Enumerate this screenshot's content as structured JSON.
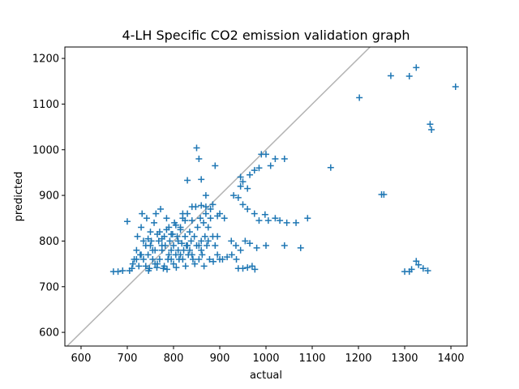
{
  "chart_data": {
    "type": "scatter",
    "title": "4-LH Specific CO2 emission validation graph",
    "xlabel": "actual",
    "ylabel": "predicted",
    "xlim": [
      565,
      1435
    ],
    "ylim": [
      570,
      1225
    ],
    "xticks": [
      600,
      700,
      800,
      900,
      1000,
      1100,
      1200,
      1300,
      1400
    ],
    "yticks": [
      600,
      700,
      800,
      900,
      1000,
      1100,
      1200
    ],
    "grid": false,
    "marker": "+",
    "series_color": "#1f77b4",
    "reference_line": {
      "from": [
        560,
        560
      ],
      "to": [
        1440,
        1440
      ],
      "color": "#b3b3b3"
    },
    "points": [
      [
        670,
        733
      ],
      [
        680,
        733
      ],
      [
        690,
        735
      ],
      [
        700,
        843
      ],
      [
        705,
        735
      ],
      [
        710,
        740
      ],
      [
        715,
        760
      ],
      [
        720,
        780
      ],
      [
        722,
        810
      ],
      [
        725,
        745
      ],
      [
        730,
        830
      ],
      [
        732,
        860
      ],
      [
        735,
        760
      ],
      [
        740,
        790
      ],
      [
        742,
        850
      ],
      [
        745,
        770
      ],
      [
        748,
        740
      ],
      [
        750,
        820
      ],
      [
        752,
        800
      ],
      [
        755,
        760
      ],
      [
        758,
        840
      ],
      [
        760,
        780
      ],
      [
        762,
        860
      ],
      [
        765,
        750
      ],
      [
        768,
        800
      ],
      [
        770,
        820
      ],
      [
        772,
        870
      ],
      [
        775,
        780
      ],
      [
        778,
        740
      ],
      [
        780,
        810
      ],
      [
        782,
        790
      ],
      [
        785,
        850
      ],
      [
        788,
        760
      ],
      [
        790,
        830
      ],
      [
        792,
        800
      ],
      [
        795,
        780
      ],
      [
        798,
        815
      ],
      [
        800,
        790
      ],
      [
        802,
        840
      ],
      [
        805,
        770
      ],
      [
        808,
        810
      ],
      [
        810,
        800
      ],
      [
        812,
        760
      ],
      [
        815,
        830
      ],
      [
        818,
        795
      ],
      [
        820,
        850
      ],
      [
        822,
        780
      ],
      [
        825,
        810
      ],
      [
        828,
        790
      ],
      [
        830,
        860
      ],
      [
        832,
        770
      ],
      [
        835,
        820
      ],
      [
        838,
        800
      ],
      [
        840,
        845
      ],
      [
        842,
        760
      ],
      [
        845,
        810
      ],
      [
        848,
        875
      ],
      [
        850,
        790
      ],
      [
        852,
        830
      ],
      [
        855,
        760
      ],
      [
        858,
        850
      ],
      [
        860,
        800
      ],
      [
        862,
        770
      ],
      [
        865,
        840
      ],
      [
        868,
        810
      ],
      [
        870,
        860
      ],
      [
        872,
        790
      ],
      [
        875,
        830
      ],
      [
        878,
        760
      ],
      [
        880,
        850
      ],
      [
        885,
        810
      ],
      [
        890,
        790
      ],
      [
        895,
        770
      ],
      [
        900,
        760
      ],
      [
        720,
        760
      ],
      [
        740,
        745
      ],
      [
        760,
        750
      ],
      [
        780,
        745
      ],
      [
        800,
        750
      ],
      [
        820,
        760
      ],
      [
        840,
        770
      ],
      [
        860,
        780
      ],
      [
        730,
        770
      ],
      [
        750,
        790
      ],
      [
        770,
        760
      ],
      [
        790,
        770
      ],
      [
        810,
        780
      ],
      [
        830,
        790
      ],
      [
        745,
        805
      ],
      [
        765,
        815
      ],
      [
        785,
        825
      ],
      [
        805,
        835
      ],
      [
        825,
        845
      ],
      [
        775,
        805
      ],
      [
        795,
        815
      ],
      [
        815,
        825
      ],
      [
        735,
        800
      ],
      [
        755,
        780
      ],
      [
        775,
        790
      ],
      [
        795,
        760
      ],
      [
        815,
        770
      ],
      [
        835,
        780
      ],
      [
        855,
        790
      ],
      [
        875,
        800
      ],
      [
        895,
        810
      ],
      [
        712,
        750
      ],
      [
        728,
        770
      ],
      [
        746,
        735
      ],
      [
        764,
        742
      ],
      [
        786,
        738
      ],
      [
        806,
        742
      ],
      [
        826,
        745
      ],
      [
        846,
        750
      ],
      [
        866,
        745
      ],
      [
        886,
        755
      ],
      [
        906,
        760
      ],
      [
        916,
        765
      ],
      [
        926,
        770
      ],
      [
        936,
        760
      ],
      [
        940,
        740
      ],
      [
        950,
        740
      ],
      [
        960,
        742
      ],
      [
        970,
        745
      ],
      [
        976,
        738
      ],
      [
        925,
        800
      ],
      [
        935,
        790
      ],
      [
        945,
        780
      ],
      [
        955,
        800
      ],
      [
        965,
        795
      ],
      [
        980,
        785
      ],
      [
        1000,
        790
      ],
      [
        1040,
        790
      ],
      [
        1075,
        785
      ],
      [
        930,
        900
      ],
      [
        940,
        895
      ],
      [
        950,
        880
      ],
      [
        960,
        870
      ],
      [
        975,
        860
      ],
      [
        985,
        845
      ],
      [
        998,
        858
      ],
      [
        1005,
        845
      ],
      [
        1020,
        850
      ],
      [
        1030,
        845
      ],
      [
        1045,
        840
      ],
      [
        1065,
        840
      ],
      [
        1090,
        850
      ],
      [
        945,
        940
      ],
      [
        950,
        930
      ],
      [
        965,
        945
      ],
      [
        975,
        955
      ],
      [
        985,
        960
      ],
      [
        990,
        990
      ],
      [
        1000,
        990
      ],
      [
        1010,
        965
      ],
      [
        1020,
        980
      ],
      [
        1040,
        980
      ],
      [
        945,
        920
      ],
      [
        960,
        915
      ],
      [
        830,
        933
      ],
      [
        850,
        1004
      ],
      [
        855,
        980
      ],
      [
        860,
        935
      ],
      [
        870,
        900
      ],
      [
        885,
        880
      ],
      [
        890,
        965
      ],
      [
        900,
        860
      ],
      [
        910,
        850
      ],
      [
        895,
        855
      ],
      [
        880,
        870
      ],
      [
        870,
        875
      ],
      [
        860,
        878
      ],
      [
        840,
        875
      ],
      [
        820,
        860
      ],
      [
        1140,
        961
      ],
      [
        1202,
        1114
      ],
      [
        1250,
        902
      ],
      [
        1255,
        902
      ],
      [
        1270,
        1162
      ],
      [
        1310,
        1161
      ],
      [
        1325,
        1180
      ],
      [
        1300,
        733
      ],
      [
        1310,
        733
      ],
      [
        1315,
        738
      ],
      [
        1325,
        756
      ],
      [
        1330,
        748
      ],
      [
        1340,
        740
      ],
      [
        1350,
        735
      ],
      [
        1355,
        1056
      ],
      [
        1358,
        1044
      ],
      [
        1410,
        1138
      ]
    ]
  }
}
